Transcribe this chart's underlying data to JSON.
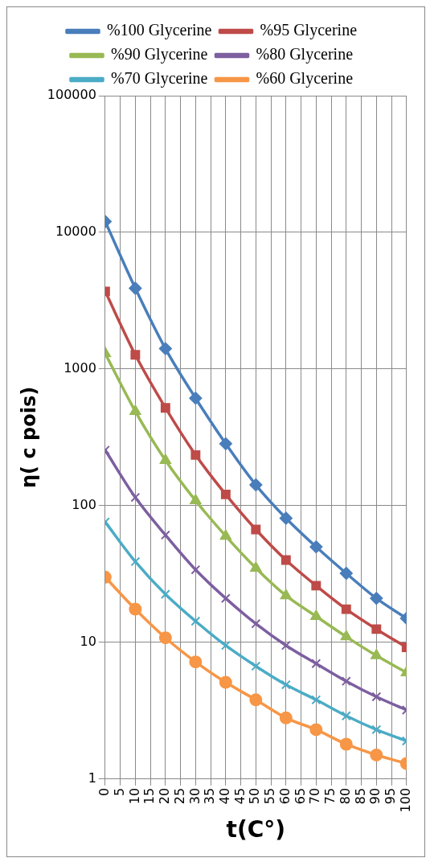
{
  "chart_data": {
    "type": "line",
    "xlabel": "t(C°)",
    "ylabel": "η( c pois)",
    "log": "y",
    "grid": true,
    "legend": "top",
    "line_style": "solid",
    "x": [
      0,
      10,
      20,
      30,
      40,
      50,
      60,
      70,
      80,
      90,
      100
    ],
    "xlim": [
      0,
      100
    ],
    "xticks": [
      0,
      5,
      10,
      15,
      20,
      25,
      30,
      35,
      40,
      45,
      50,
      55,
      60,
      65,
      70,
      75,
      80,
      85,
      90,
      95,
      100
    ],
    "ylim": [
      1,
      100000
    ],
    "yticks": [
      1,
      10,
      100,
      1000,
      10000,
      100000
    ],
    "series": [
      {
        "name": "%100 Glycerine",
        "color": "#4a7ebb",
        "marker": "diamond",
        "values": [
          12000,
          3900,
          1410,
          612,
          284,
          142,
          81,
          50,
          32,
          21,
          15
        ]
      },
      {
        "name": "%95 Glycerine",
        "color": "#be4b48",
        "marker": "square",
        "values": [
          3700,
          1270,
          520,
          235,
          121,
          67,
          40,
          26,
          17.5,
          12.5,
          9.2
        ]
      },
      {
        "name": "%90 Glycerine",
        "color": "#98b954",
        "marker": "triangle",
        "values": [
          1300,
          490,
          215,
          109,
          60,
          35,
          22,
          15.5,
          11,
          8,
          6
        ]
      },
      {
        "name": "%80 Glycerine",
        "color": "#7d5fa0",
        "marker": "cross",
        "values": [
          255,
          115,
          61,
          34,
          21,
          13.7,
          9.5,
          7,
          5.2,
          4,
          3.2
        ]
      },
      {
        "name": "%70 Glycerine",
        "color": "#4bacc6",
        "marker": "cross",
        "values": [
          76,
          39,
          22.5,
          14.3,
          9.5,
          6.7,
          4.9,
          3.8,
          2.9,
          2.3,
          1.9
        ]
      },
      {
        "name": "%60 Glycerine",
        "color": "#f79646",
        "marker": "circle",
        "values": [
          30,
          17.5,
          10.8,
          7.2,
          5.1,
          3.8,
          2.8,
          2.3,
          1.8,
          1.5,
          1.3
        ]
      }
    ]
  }
}
